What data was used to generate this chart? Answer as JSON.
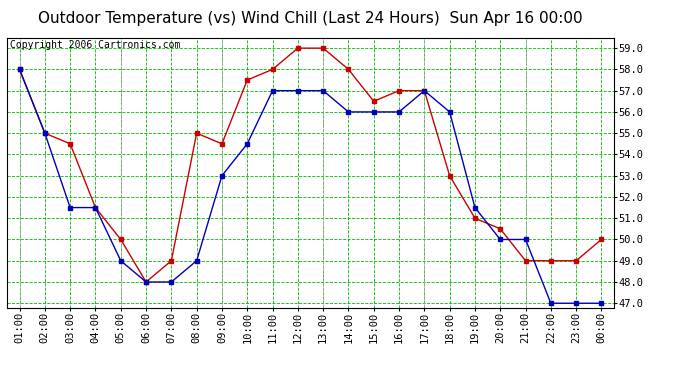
{
  "title": "Outdoor Temperature (vs) Wind Chill (Last 24 Hours)  Sun Apr 16 00:00",
  "copyright_text": "Copyright 2006 Cartronics.com",
  "x_labels": [
    "01:00",
    "02:00",
    "03:00",
    "04:00",
    "05:00",
    "06:00",
    "07:00",
    "08:00",
    "09:00",
    "10:00",
    "11:00",
    "12:00",
    "13:00",
    "14:00",
    "15:00",
    "16:00",
    "17:00",
    "18:00",
    "19:00",
    "20:00",
    "21:00",
    "22:00",
    "23:00",
    "00:00"
  ],
  "temp_red": [
    58.0,
    55.0,
    54.5,
    51.5,
    50.0,
    48.0,
    49.0,
    55.0,
    54.5,
    57.5,
    58.0,
    59.0,
    59.0,
    58.0,
    56.5,
    57.0,
    57.0,
    53.0,
    51.0,
    50.5,
    49.0,
    49.0,
    49.0,
    50.0
  ],
  "wind_chill_blue": [
    58.0,
    55.0,
    51.5,
    51.5,
    49.0,
    48.0,
    48.0,
    49.0,
    53.0,
    54.5,
    57.0,
    57.0,
    57.0,
    56.0,
    56.0,
    56.0,
    57.0,
    56.0,
    51.5,
    50.0,
    50.0,
    47.0,
    47.0,
    47.0
  ],
  "ylim_min": 46.8,
  "ylim_max": 59.5,
  "yticks": [
    47.0,
    48.0,
    49.0,
    50.0,
    51.0,
    52.0,
    53.0,
    54.0,
    55.0,
    56.0,
    57.0,
    58.0,
    59.0
  ],
  "red_color": "#cc0000",
  "blue_color": "#0000bb",
  "grid_green_color": "#00bb00",
  "grid_gray_color": "#aaaaaa",
  "bg_color": "#ffffff",
  "title_fontsize": 11,
  "copyright_fontsize": 7,
  "tick_fontsize": 7.5
}
